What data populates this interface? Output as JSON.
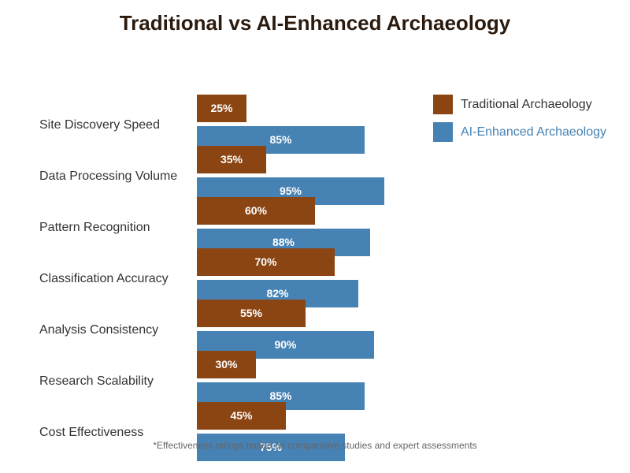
{
  "chart_data": {
    "type": "bar",
    "orientation": "horizontal",
    "title": "Traditional vs AI-Enhanced Archaeology",
    "categories": [
      "Site Discovery Speed",
      "Data Processing Volume",
      "Pattern Recognition",
      "Classification Accuracy",
      "Analysis Consistency",
      "Research Scalability",
      "Cost Effectiveness"
    ],
    "series": [
      {
        "name": "Traditional Archaeology",
        "color": "#8b4513",
        "values": [
          25,
          35,
          60,
          70,
          55,
          30,
          45
        ],
        "labels": [
          "25%",
          "35%",
          "60%",
          "70%",
          "55%",
          "30%",
          "45%"
        ]
      },
      {
        "name": "AI-Enhanced Archaeology",
        "color": "#4682b4",
        "values": [
          85,
          95,
          88,
          82,
          90,
          85,
          75
        ],
        "labels": [
          "85%",
          "95%",
          "88%",
          "82%",
          "90%",
          "85%",
          "75%"
        ]
      }
    ],
    "xlim": [
      0,
      100
    ],
    "grid": false,
    "legend_position": "top-right",
    "footnote": "*Effectiveness ratings based on comparative studies and expert assessments"
  }
}
